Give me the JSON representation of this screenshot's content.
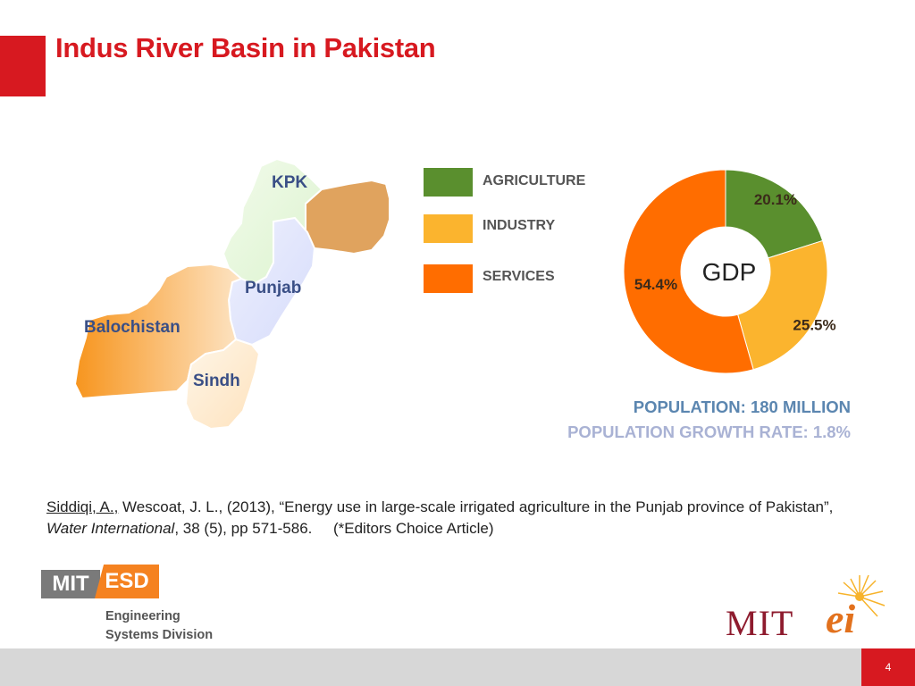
{
  "slide": {
    "title": "Indus River Basin in Pakistan",
    "page_number": "4"
  },
  "map": {
    "regions": [
      {
        "name": "KPK",
        "color": "#e6f7dc"
      },
      {
        "name": "Punjab",
        "color": "#dde2fb"
      },
      {
        "name": "Balochistan",
        "color": "#f7a43a"
      },
      {
        "name": "Sindh",
        "color": "#fde9c8"
      }
    ],
    "northern_area_color": "#e0a35e"
  },
  "legend": {
    "items": [
      {
        "label": "AGRICULTURE",
        "color": "#5a8f2e"
      },
      {
        "label": "INDUSTRY",
        "color": "#fbb42e"
      },
      {
        "label": "SERVICES",
        "color": "#ff6d00"
      }
    ]
  },
  "chart_data": {
    "type": "pie",
    "title": "GDP",
    "categories": [
      "AGRICULTURE",
      "INDUSTRY",
      "SERVICES"
    ],
    "values": [
      20.1,
      25.5,
      54.4
    ],
    "labels": [
      "20.1%",
      "25.5%",
      "54.4%"
    ],
    "colors": [
      "#5a8f2e",
      "#fbb42e",
      "#ff6d00"
    ],
    "legend": "left"
  },
  "stats": {
    "population": "POPULATION: 180 MILLION",
    "growth": "POPULATION GROWTH RATE: 1.8%",
    "population_color": "#5b86b0",
    "growth_color": "#a9b2d4"
  },
  "citation": {
    "author_link": "Siddiqi, A.,",
    "text_part1": " Wescoat, J. L., (2013), “Energy use in large-scale irrigated agriculture in the Punjab province of Pakistan”, ",
    "journal": "Water International",
    "text_part2": ", 38 (5), pp 571-586.     (*Editors Choice Article)"
  },
  "logos": {
    "esd": {
      "mit": "MIT",
      "esd": "ESD",
      "line1": "Engineering",
      "line2": "Systems Division"
    },
    "mitei": {
      "mit": "MIT",
      "ei": "ei"
    }
  }
}
